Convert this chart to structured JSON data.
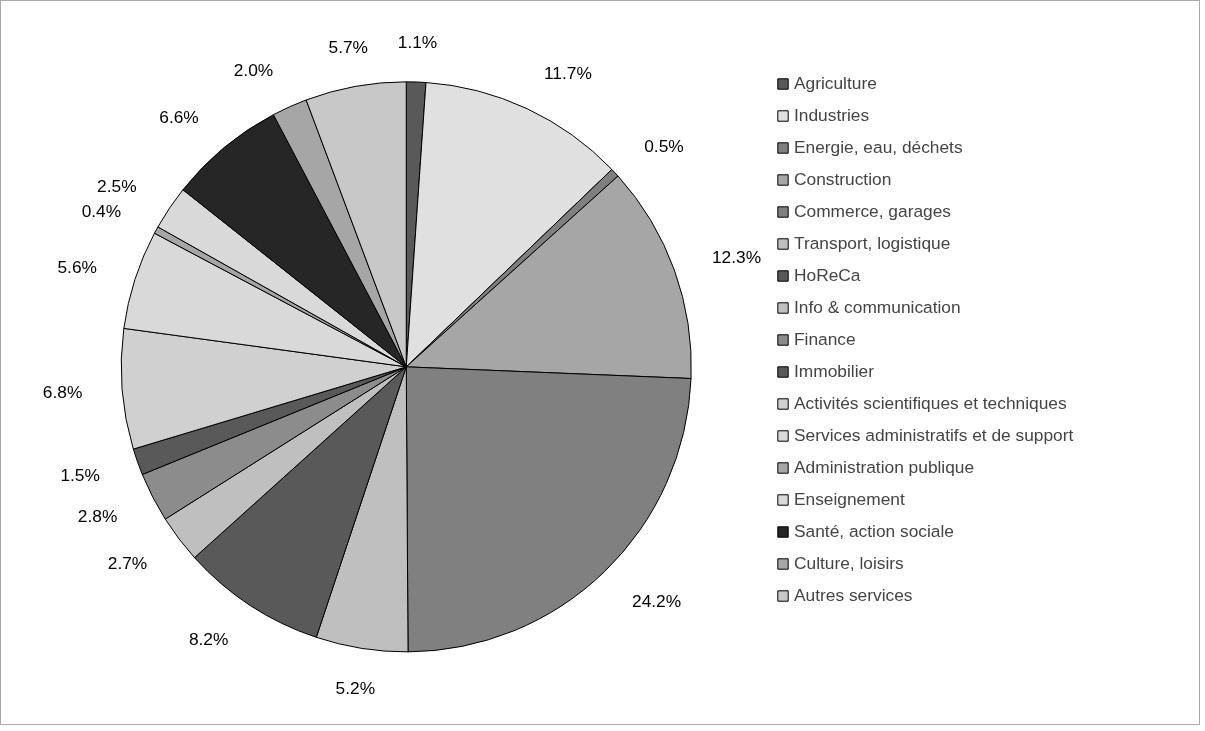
{
  "chart_data": {
    "type": "pie",
    "categories": [
      "Agriculture",
      "Industries",
      "Energie, eau, déchets",
      "Construction",
      "Commerce, garages",
      "Transport, logistique",
      "HoReCa",
      "Info & communication",
      "Finance",
      "Immobilier",
      "Activités scientifiques et techniques",
      "Services administratifs et de support",
      "Administration publique",
      "Enseignement",
      "Santé, action sociale",
      "Culture, loisirs",
      "Autres services"
    ],
    "values": [
      1.1,
      11.7,
      0.5,
      12.3,
      24.2,
      5.2,
      8.2,
      2.7,
      2.8,
      1.5,
      6.8,
      5.6,
      0.4,
      2.5,
      6.6,
      2.0,
      5.7
    ],
    "value_labels": [
      "1.1%",
      "11.7%",
      "0.5%",
      "12.3%",
      "24.2%",
      "5.2%",
      "8.2%",
      "2.7%",
      "2.8%",
      "1.5%",
      "6.8%",
      "5.6%",
      "0.4%",
      "2.5%",
      "6.6%",
      "2.0%",
      "5.7%"
    ],
    "colors": [
      "#595959",
      "#e0e0e0",
      "#7f7f7f",
      "#a6a6a6",
      "#808080",
      "#bfbfbf",
      "#595959",
      "#bfbfbf",
      "#8c8c8c",
      "#595959",
      "#d0d0d0",
      "#d9d9d9",
      "#a6a6a6",
      "#d9d9d9",
      "#262626",
      "#a6a6a6",
      "#c8c8c8"
    ],
    "legend": "right"
  }
}
